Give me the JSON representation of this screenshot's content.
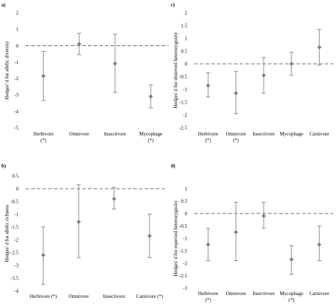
{
  "chart_data": [
    {
      "type": "scatter",
      "panel_label": "a)",
      "ylabel": "Hedges' d for allelic diversity",
      "ylim": [
        -5,
        2
      ],
      "yticks": [
        2,
        1,
        0,
        -1,
        -2,
        -3,
        -4,
        -5
      ],
      "reference_line": 0,
      "categories": [
        "Herbivore\n(*)",
        "Omnivore",
        "Insectivore",
        "Mycophage\n(*)"
      ],
      "values": [
        -1.85,
        0.1,
        -1.1,
        -3.1
      ],
      "error_low": [
        -3.35,
        -0.55,
        -2.85,
        -3.8
      ],
      "error_high": [
        -0.35,
        0.75,
        0.7,
        -2.4
      ]
    },
    {
      "type": "scatter",
      "panel_label": "c)",
      "ylabel": "Hedges' d for observed heterozygosity",
      "ylim": [
        -2.5,
        2
      ],
      "yticks": [
        2,
        1.5,
        1,
        0.5,
        0,
        -0.5,
        -1,
        -1.5,
        -2,
        -2.5
      ],
      "reference_line": 0,
      "categories": [
        "Herbivore\n(*)",
        "Omnivore\n(*)",
        "Insectivore",
        "Mycophage",
        "Carnivore"
      ],
      "values": [
        -0.85,
        -1.15,
        -0.45,
        0.0,
        0.65
      ],
      "error_low": [
        -1.3,
        -1.95,
        -1.15,
        -0.45,
        -0.05
      ],
      "error_high": [
        -0.35,
        -0.3,
        0.25,
        0.45,
        1.35
      ]
    },
    {
      "type": "scatter",
      "panel_label": "b)",
      "ylabel": "Hedges' d for allelic richness",
      "ylim": [
        -4,
        0.5
      ],
      "yticks": [
        0.5,
        0,
        -0.5,
        -1,
        -1.5,
        -2,
        -2.5,
        -3,
        -3.5,
        -4
      ],
      "reference_line": 0,
      "categories": [
        "Herbivore (*)",
        "Omnivore",
        "Insectivore",
        "Carnivore (*)"
      ],
      "values": [
        -2.6,
        -1.3,
        -0.4,
        -1.85
      ],
      "error_low": [
        -3.75,
        -2.7,
        -0.8,
        -2.7
      ],
      "error_high": [
        -1.5,
        0.15,
        0.05,
        -1.0
      ]
    },
    {
      "type": "scatter",
      "panel_label": "d)",
      "ylabel": "Hedges' d for expected heterozygosity",
      "ylim": [
        -3,
        1
      ],
      "yticks": [
        1,
        0.5,
        0,
        -0.5,
        -1,
        -1.5,
        -2,
        -2.5,
        -3
      ],
      "reference_line": 0,
      "categories": [
        "Herbivore\n(*)",
        "Omnivore",
        "Insectivore",
        "Mycophage\n(*)",
        "Carnivore"
      ],
      "values": [
        -1.25,
        -0.75,
        -0.1,
        -1.85,
        -1.25
      ],
      "error_low": [
        -1.9,
        -1.9,
        -0.6,
        -2.45,
        -1.9
      ],
      "error_high": [
        -0.6,
        0.45,
        0.45,
        -1.3,
        -0.5
      ]
    }
  ]
}
